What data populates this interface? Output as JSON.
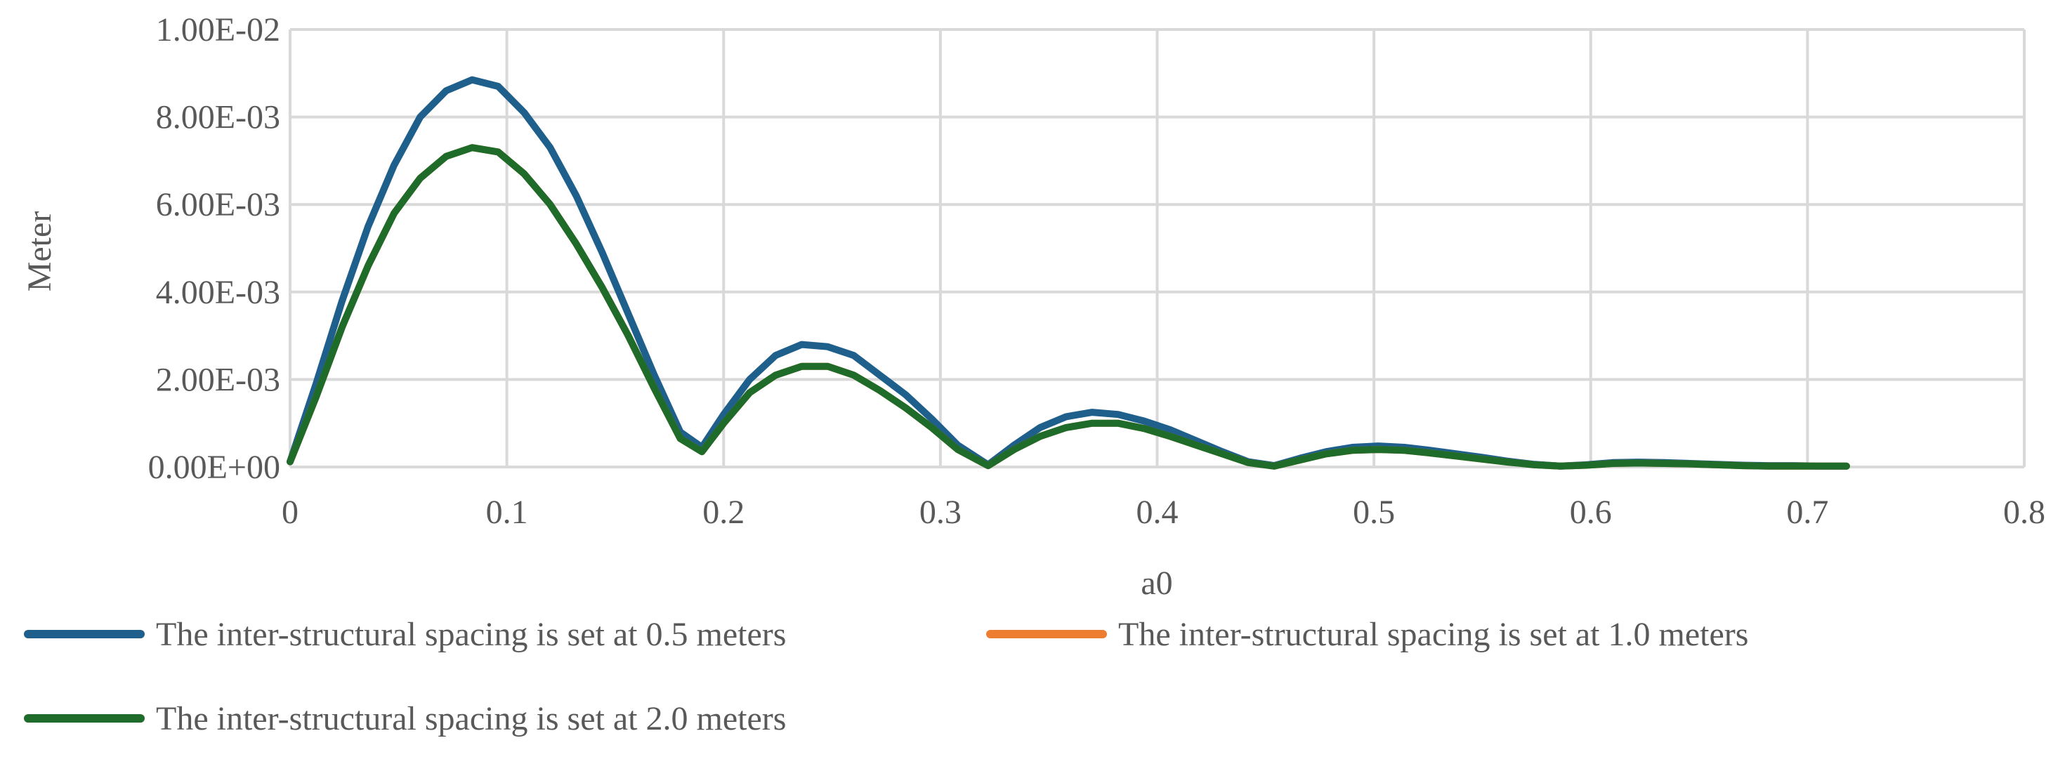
{
  "chart_data": {
    "type": "line",
    "title": "",
    "xlabel": "a0",
    "ylabel": "Meter",
    "xlim": [
      0,
      0.8
    ],
    "ylim": [
      0,
      0.01
    ],
    "x_ticks": [
      0,
      0.1,
      0.2,
      0.3,
      0.4,
      0.5,
      0.6,
      0.7,
      0.8
    ],
    "x_tick_labels": [
      "0",
      "0.1",
      "0.2",
      "0.3",
      "0.4",
      "0.5",
      "0.6",
      "0.7",
      "0.8"
    ],
    "y_ticks": [
      0,
      0.002,
      0.004,
      0.006,
      0.008,
      0.01
    ],
    "y_tick_labels": [
      "0.00E+00",
      "2.00E-03",
      "4.00E-03",
      "6.00E-03",
      "8.00E-03",
      "1.00E-02"
    ],
    "grid": true,
    "legend_position": "bottom",
    "x": [
      0,
      0.012,
      0.024,
      0.036,
      0.048,
      0.06,
      0.072,
      0.084,
      0.096,
      0.108,
      0.12,
      0.132,
      0.144,
      0.156,
      0.168,
      0.18,
      0.19,
      0.2,
      0.212,
      0.224,
      0.236,
      0.248,
      0.26,
      0.272,
      0.284,
      0.296,
      0.308,
      0.322,
      0.334,
      0.346,
      0.358,
      0.37,
      0.382,
      0.394,
      0.406,
      0.418,
      0.43,
      0.442,
      0.454,
      0.466,
      0.478,
      0.49,
      0.502,
      0.514,
      0.526,
      0.538,
      0.55,
      0.562,
      0.574,
      0.586,
      0.598,
      0.61,
      0.622,
      0.634,
      0.646,
      0.658,
      0.67,
      0.682,
      0.694,
      0.706,
      0.718
    ],
    "series": [
      {
        "name": "The inter-structural spacing is set at 0.5 meters",
        "color": "#1f5f8b",
        "values": [
          0.00012,
          0.0019,
          0.0038,
          0.0055,
          0.0069,
          0.008,
          0.0086,
          0.00885,
          0.0087,
          0.0081,
          0.0073,
          0.0062,
          0.0049,
          0.0035,
          0.0021,
          0.0008,
          0.00045,
          0.0012,
          0.002,
          0.00255,
          0.0028,
          0.00275,
          0.00255,
          0.0021,
          0.00165,
          0.0011,
          0.0005,
          5e-05,
          0.0005,
          0.0009,
          0.00115,
          0.00125,
          0.0012,
          0.00105,
          0.00085,
          0.0006,
          0.00035,
          0.00012,
          3e-05,
          0.0002,
          0.00035,
          0.00045,
          0.00048,
          0.00045,
          0.00038,
          0.0003,
          0.00022,
          0.00013,
          6e-05,
          2e-05,
          5e-05,
          0.0001,
          0.00011,
          0.0001,
          8e-05,
          6e-05,
          4e-05,
          3e-05,
          3e-05,
          2e-05,
          2e-05
        ]
      },
      {
        "name": "The inter-structural spacing is set at 1.0 meters",
        "color": "#ed7d31",
        "values": [
          0.00012,
          0.0016,
          0.0032,
          0.0046,
          0.0058,
          0.0066,
          0.0071,
          0.0073,
          0.0072,
          0.0067,
          0.006,
          0.0051,
          0.0041,
          0.003,
          0.0018,
          0.00065,
          0.00035,
          0.001,
          0.0017,
          0.0021,
          0.0023,
          0.0023,
          0.0021,
          0.00175,
          0.00135,
          0.0009,
          0.0004,
          3e-05,
          0.0004,
          0.0007,
          0.0009,
          0.001,
          0.001,
          0.00088,
          0.0007,
          0.0005,
          0.0003,
          0.0001,
          2e-05,
          0.00016,
          0.0003,
          0.00038,
          0.0004,
          0.00038,
          0.00032,
          0.00025,
          0.00018,
          0.00011,
          5e-05,
          2e-05,
          4e-05,
          8e-05,
          9e-05,
          8e-05,
          7e-05,
          5e-05,
          3e-05,
          2e-05,
          2e-05,
          2e-05,
          2e-05
        ]
      },
      {
        "name": "The inter-structural spacing is set at 2.0 meters",
        "color": "#1e6b2a",
        "values": [
          0.00012,
          0.0016,
          0.0032,
          0.0046,
          0.0058,
          0.0066,
          0.0071,
          0.0073,
          0.0072,
          0.0067,
          0.006,
          0.0051,
          0.0041,
          0.003,
          0.0018,
          0.00065,
          0.00035,
          0.001,
          0.0017,
          0.0021,
          0.0023,
          0.0023,
          0.0021,
          0.00175,
          0.00135,
          0.0009,
          0.0004,
          3e-05,
          0.0004,
          0.0007,
          0.0009,
          0.001,
          0.001,
          0.00088,
          0.0007,
          0.0005,
          0.0003,
          0.0001,
          2e-05,
          0.00016,
          0.0003,
          0.00038,
          0.0004,
          0.00038,
          0.00032,
          0.00025,
          0.00018,
          0.00011,
          5e-05,
          2e-05,
          4e-05,
          8e-05,
          9e-05,
          8e-05,
          7e-05,
          5e-05,
          3e-05,
          2e-05,
          2e-05,
          2e-05,
          2e-05
        ]
      }
    ]
  }
}
